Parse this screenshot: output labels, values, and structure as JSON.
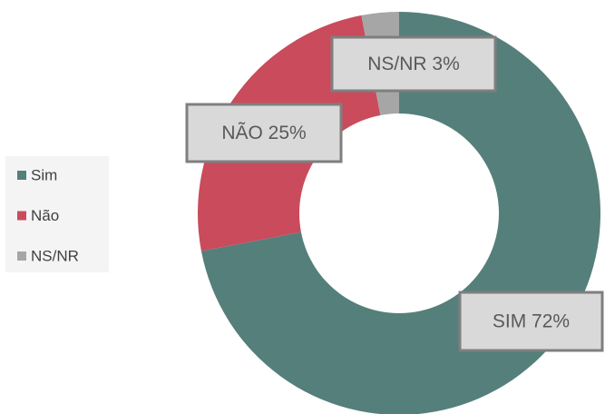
{
  "chart_data": {
    "type": "donut",
    "categories": [
      "Sim",
      "Não",
      "NS/NR"
    ],
    "values": [
      72,
      25,
      3
    ],
    "value_labels": [
      "SIM 72%",
      "NÃO 25%",
      "NS/NR 3%"
    ],
    "colors": [
      "#557f7a",
      "#c94b5c",
      "#a6a6a6"
    ],
    "legend": "left"
  }
}
